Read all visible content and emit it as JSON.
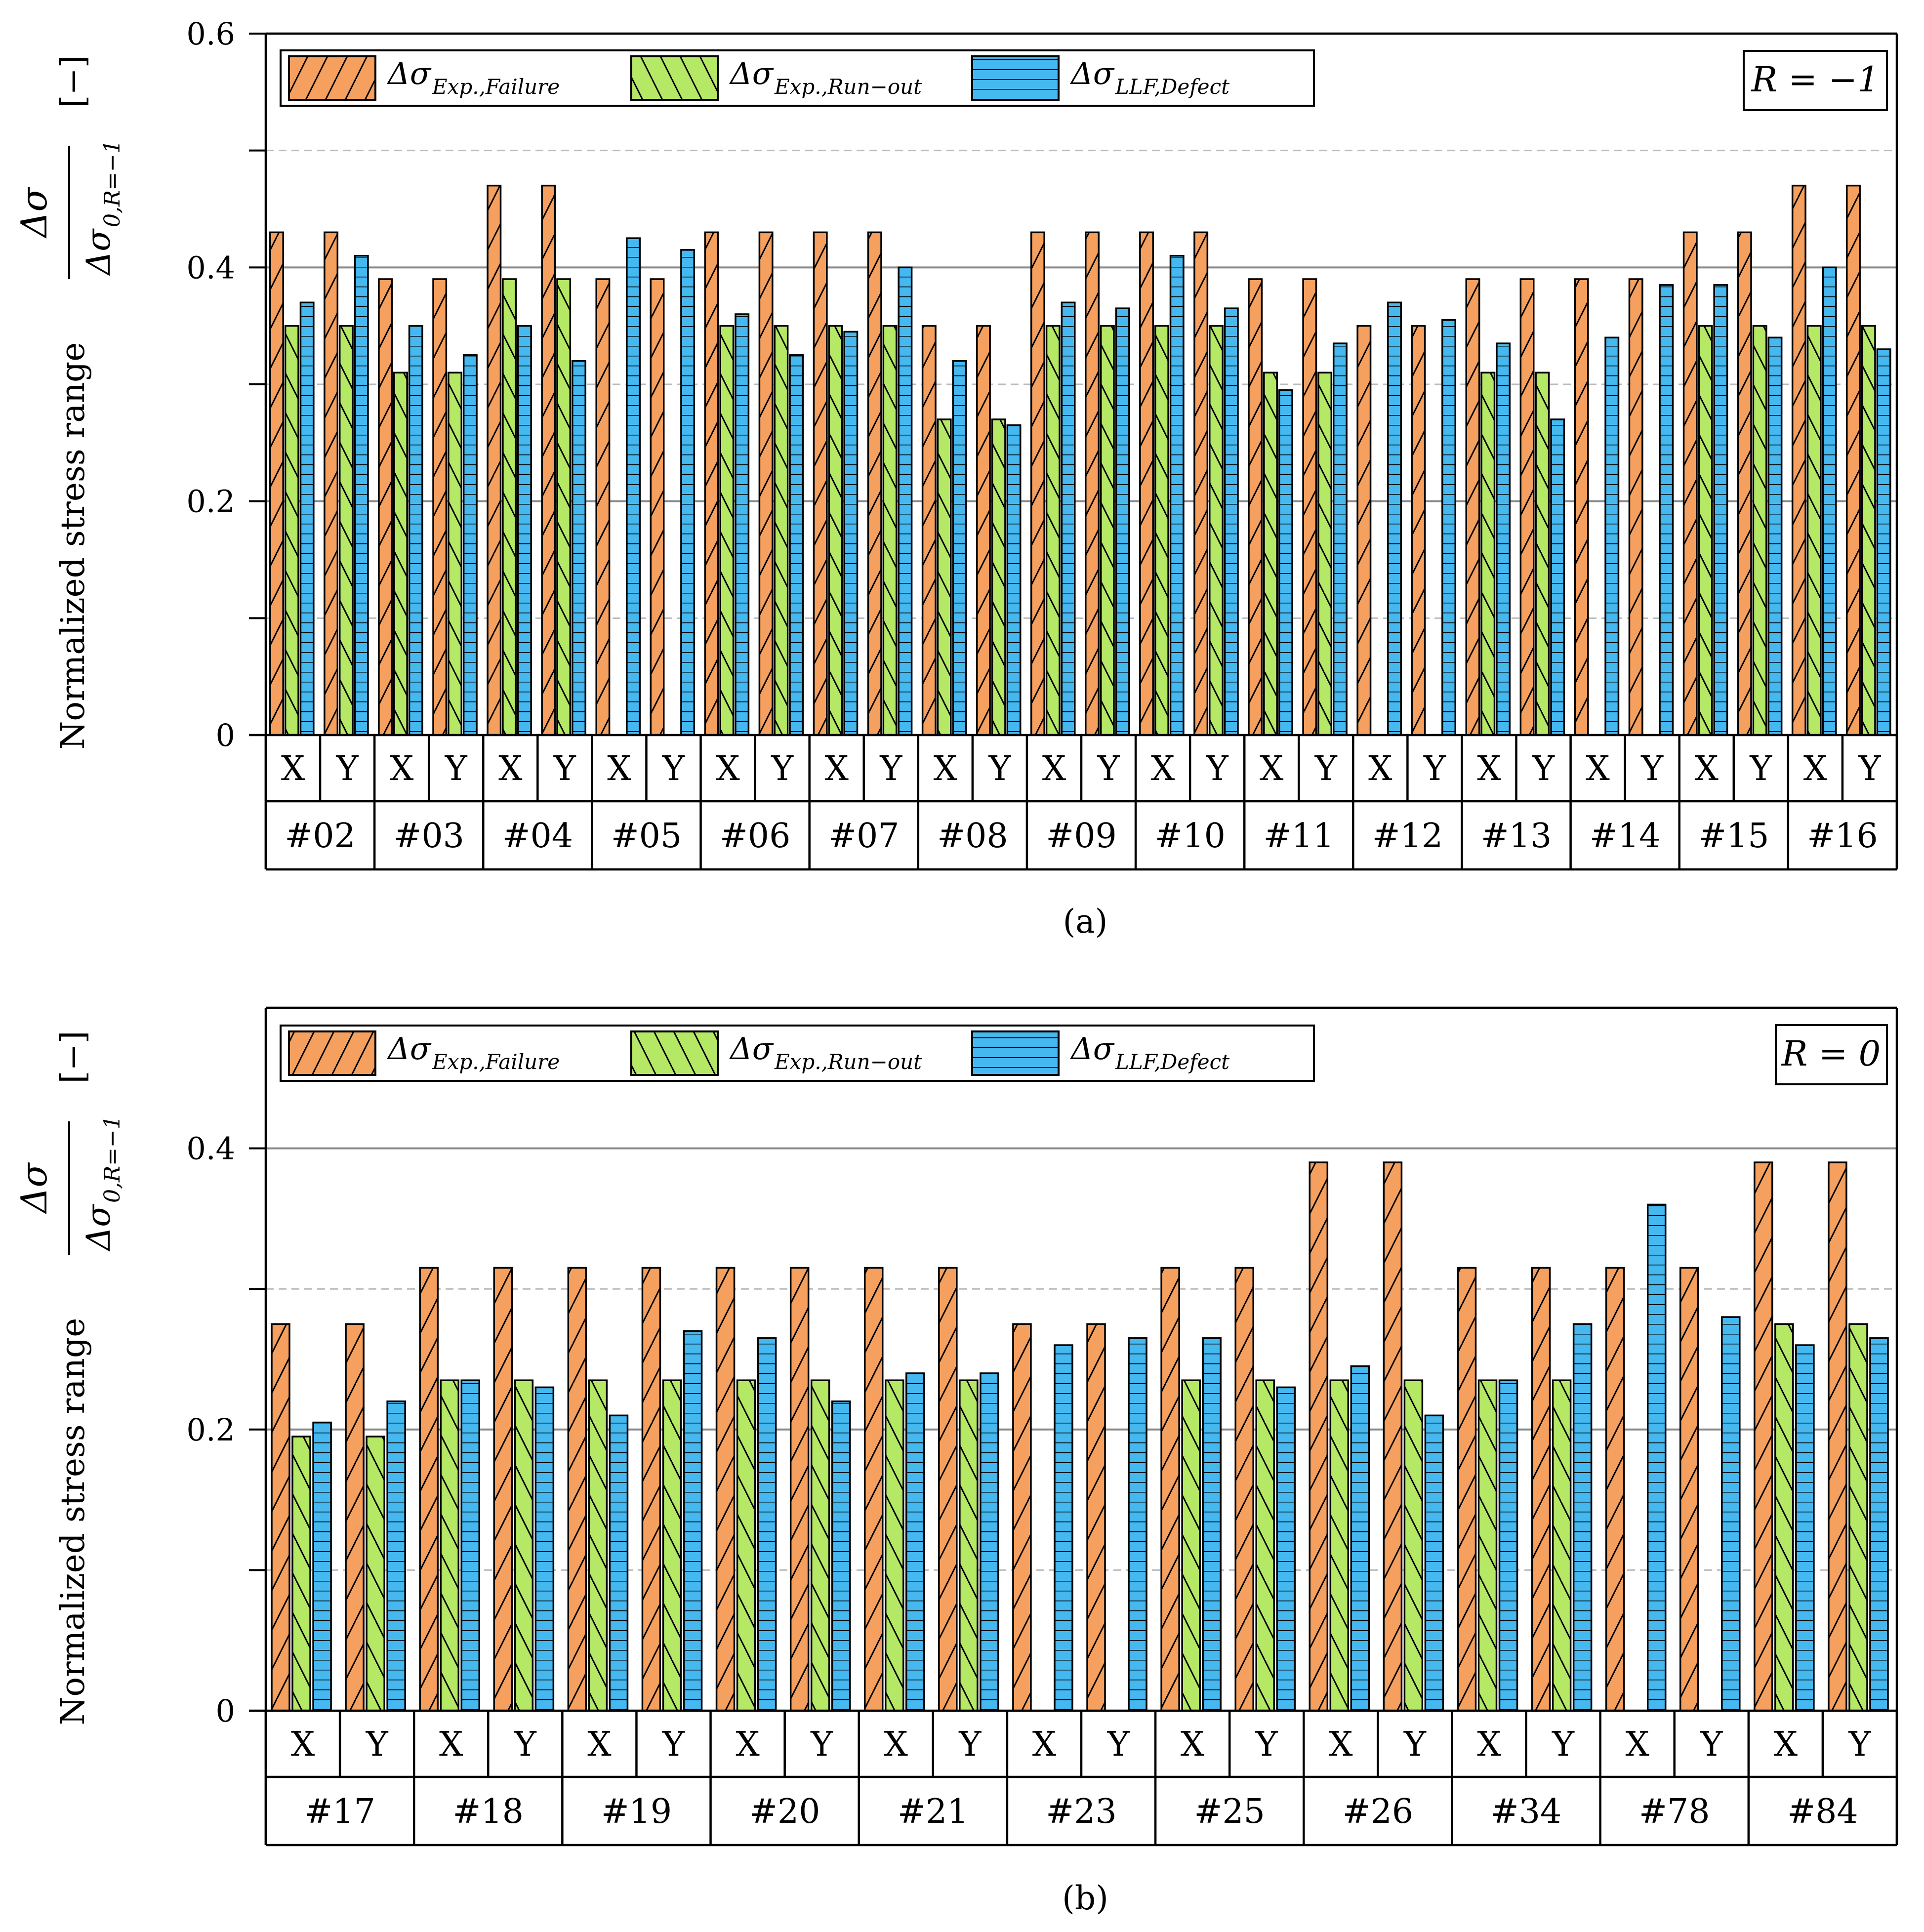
{
  "colors": {
    "failure": "#F5A05E",
    "runout": "#B5E865",
    "defect": "#45B8F0",
    "grid_major": "#8a8a8a",
    "grid_minor": "#bbbbbb"
  },
  "legend": [
    {
      "key": "failure",
      "label": "Δσ",
      "sub": "Exp.,Failure"
    },
    {
      "key": "runout",
      "label": "Δσ",
      "sub": "Exp.,Run−out"
    },
    {
      "key": "defect",
      "label": "Δσ",
      "sub": "LLF,Defect"
    }
  ],
  "y_axis": {
    "label": "Normalized stress range",
    "frac_num": "Δσ",
    "frac_den": "Δσ",
    "frac_den_sub": "0,R=−1",
    "unit": "[−]"
  },
  "chart_data": [
    {
      "type": "bar",
      "id": "a",
      "caption": "(a)",
      "r_label": "R = −1",
      "ylim": [
        0,
        0.6
      ],
      "yticks": [
        0,
        0.2,
        0.4,
        0.6
      ],
      "ytick_labels": [
        "0",
        "0.2",
        "0.4",
        "0.6"
      ],
      "minor_grid": [
        0.1,
        0.3,
        0.5
      ],
      "directions": [
        "X",
        "Y"
      ],
      "specimens": [
        "#02",
        "#03",
        "#04",
        "#05",
        "#06",
        "#07",
        "#08",
        "#09",
        "#10",
        "#11",
        "#12",
        "#13",
        "#14",
        "#15",
        "#16"
      ],
      "series": [
        {
          "name": "failure",
          "values": [
            0.43,
            0.43,
            0.39,
            0.39,
            0.47,
            0.47,
            0.39,
            0.39,
            0.43,
            0.43,
            0.43,
            0.43,
            0.35,
            0.35,
            0.43,
            0.43,
            0.43,
            0.43,
            0.39,
            0.39,
            0.35,
            0.35,
            0.39,
            0.39,
            0.39,
            0.39,
            0.43,
            0.43,
            0.47,
            0.47
          ]
        },
        {
          "name": "runout",
          "values": [
            0.35,
            0.35,
            0.31,
            0.31,
            0.39,
            0.39,
            0,
            0,
            0.35,
            0.35,
            0.35,
            0.35,
            0.27,
            0.27,
            0.35,
            0.35,
            0.35,
            0.35,
            0.31,
            0.31,
            0,
            0,
            0.31,
            0.31,
            0,
            0,
            0.35,
            0.35,
            0.35,
            0.35
          ]
        },
        {
          "name": "defect",
          "values": [
            0.37,
            0.41,
            0.35,
            0.325,
            0.35,
            0.32,
            0.425,
            0.415,
            0.36,
            0.325,
            0.345,
            0.4,
            0.32,
            0.265,
            0.37,
            0.365,
            0.41,
            0.365,
            0.295,
            0.335,
            0.37,
            0.355,
            0.335,
            0.27,
            0.34,
            0.385,
            0.385,
            0.34,
            0.4,
            0.33
          ]
        }
      ]
    },
    {
      "type": "bar",
      "id": "b",
      "caption": "(b)",
      "r_label": "R = 0",
      "ylim": [
        0,
        0.5
      ],
      "yticks": [
        0,
        0.2,
        0.4
      ],
      "ytick_labels": [
        "0",
        "0.2",
        "0.4"
      ],
      "minor_grid": [
        0.1,
        0.3
      ],
      "directions": [
        "X",
        "Y"
      ],
      "specimens": [
        "#17",
        "#18",
        "#19",
        "#20",
        "#21",
        "#23",
        "#25",
        "#26",
        "#34",
        "#78",
        "#84"
      ],
      "series": [
        {
          "name": "failure",
          "values": [
            0.275,
            0.275,
            0.315,
            0.315,
            0.315,
            0.315,
            0.315,
            0.315,
            0.315,
            0.315,
            0.275,
            0.275,
            0.315,
            0.315,
            0.39,
            0.39,
            0.315,
            0.315,
            0.315,
            0.315,
            0.39,
            0.39
          ]
        },
        {
          "name": "runout",
          "values": [
            0.195,
            0.195,
            0.235,
            0.235,
            0.235,
            0.235,
            0.235,
            0.235,
            0.235,
            0.235,
            0,
            0,
            0.235,
            0.235,
            0.235,
            0.235,
            0.235,
            0.235,
            0,
            0,
            0.275,
            0.275
          ]
        },
        {
          "name": "defect",
          "values": [
            0.205,
            0.22,
            0.235,
            0.23,
            0.21,
            0.27,
            0.265,
            0.22,
            0.24,
            0.24,
            0.26,
            0.265,
            0.265,
            0.23,
            0.245,
            0.21,
            0.235,
            0.275,
            0.36,
            0.28,
            0.26,
            0.265
          ]
        }
      ]
    }
  ]
}
